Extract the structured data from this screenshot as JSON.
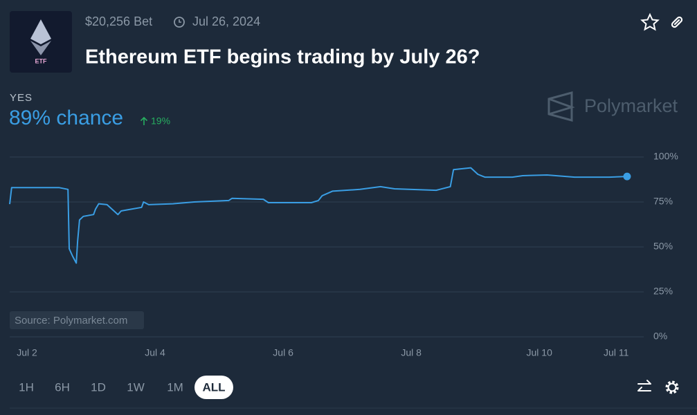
{
  "header": {
    "logo_text": "ETF",
    "volume": "$20,256 Bet",
    "end_date": "Jul 26, 2024",
    "title": "Ethereum ETF begins trading by July 26?"
  },
  "outcome": {
    "label": "YES",
    "chance": "89% chance",
    "change": "19%"
  },
  "brand": "Polymarket",
  "source": "Source: Polymarket.com",
  "ranges": [
    "1H",
    "6H",
    "1D",
    "1W",
    "1M",
    "ALL"
  ],
  "active_range": "ALL",
  "chart_data": {
    "type": "line",
    "x": [
      1.73,
      1.76,
      2.5,
      2.64,
      2.66,
      2.71,
      2.77,
      2.79,
      2.82,
      2.88,
      3.04,
      3.07,
      3.12,
      3.25,
      3.42,
      3.47,
      3.63,
      3.79,
      3.82,
      3.9,
      4.28,
      4.61,
      5.15,
      5.2,
      5.69,
      5.77,
      6.44,
      6.55,
      6.61,
      6.77,
      7.2,
      7.52,
      7.74,
      8.39,
      8.61,
      8.66,
      8.93,
      9.04,
      9.15,
      9.58,
      9.74,
      10.12,
      10.55,
      11.09,
      11.37
    ],
    "series": [
      {
        "name": "YES",
        "color": "#3a9ee4",
        "values": [
          73.8,
          83,
          83,
          82,
          49,
          45,
          41,
          53,
          65,
          67,
          68,
          71,
          74,
          73.5,
          68,
          70,
          71,
          72,
          75,
          73.5,
          74,
          75,
          75.8,
          77,
          76.5,
          74.6,
          74.6,
          75.8,
          78.5,
          81,
          82,
          83.5,
          82.3,
          81.5,
          83.5,
          93,
          94,
          90.4,
          88.8,
          88.8,
          89.6,
          90,
          88.8,
          88.8,
          89.2
        ]
      }
    ],
    "xlim": [
      1.73,
      11.63
    ],
    "xticks": [
      {
        "value": 2,
        "label": "Jul 2"
      },
      {
        "value": 4,
        "label": "Jul 4"
      },
      {
        "value": 6,
        "label": "Jul 6"
      },
      {
        "value": 8,
        "label": "Jul 8"
      },
      {
        "value": 10,
        "label": "Jul 10"
      },
      {
        "value": 11.2,
        "label": "Jul 11"
      }
    ],
    "ylim": [
      0,
      100
    ],
    "yticks": [
      {
        "value": 0,
        "label": "0%"
      },
      {
        "value": 25,
        "label": "25%"
      },
      {
        "value": 50,
        "label": "50%"
      },
      {
        "value": 75,
        "label": "75%"
      },
      {
        "value": 100,
        "label": "100%"
      }
    ],
    "grid": true
  }
}
